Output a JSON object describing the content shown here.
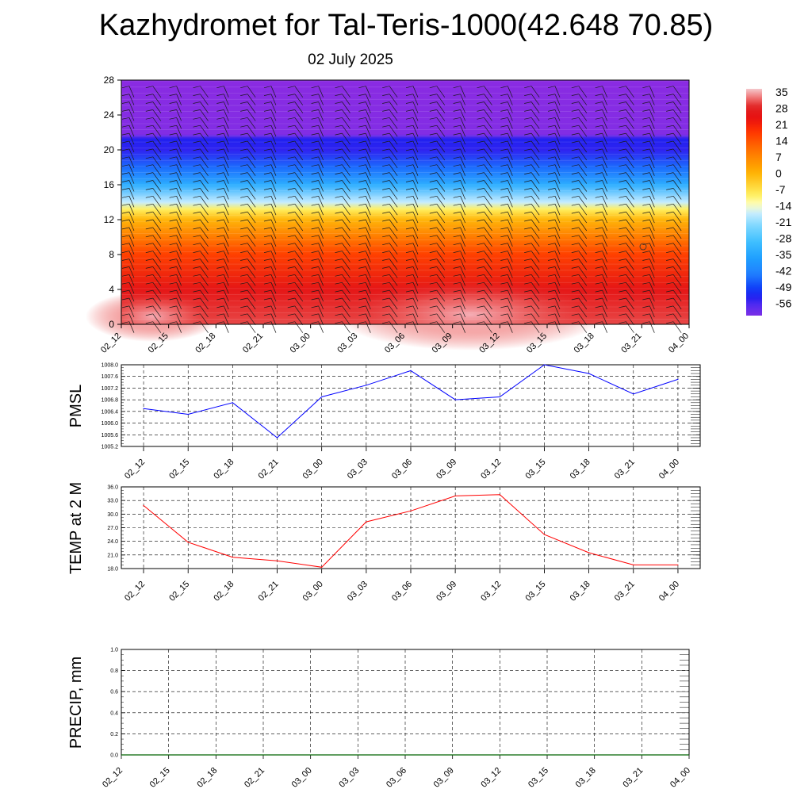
{
  "title": "Kazhydromet for Tal-Teris-1000(42.648 70.85)",
  "subtitle": "02 July 2025",
  "chart_data": [
    {
      "type": "heatmap",
      "x_ticks": [
        "02_12",
        "02_15",
        "02_18",
        "02_21",
        "03_00",
        "03_03",
        "03_06",
        "03_09",
        "03_12",
        "03_15",
        "03_18",
        "03_21",
        "04_00"
      ],
      "y_ticks": [
        0,
        4,
        8,
        12,
        16,
        20,
        24,
        28
      ],
      "ylim": [
        0,
        28
      ],
      "colorbar": {
        "labels": [
          "35",
          "28",
          "21",
          "14",
          "7",
          "0",
          "-7",
          "-14",
          "-21",
          "-28",
          "-35",
          "-42",
          "-49",
          "-56"
        ],
        "range": [
          -60,
          38
        ]
      },
      "temperature_profile": [
        {
          "level": 0,
          "value": 32
        },
        {
          "level": 4,
          "value": 27
        },
        {
          "level": 8,
          "value": 18
        },
        {
          "level": 10,
          "value": 10
        },
        {
          "level": 12,
          "value": 1
        },
        {
          "level": 13.2,
          "value": -8
        },
        {
          "level": 14,
          "value": -16
        },
        {
          "level": 16,
          "value": -32
        },
        {
          "level": 18,
          "value": -44
        },
        {
          "level": 20,
          "value": -53
        },
        {
          "level": 21.2,
          "value": -52
        },
        {
          "level": 21.8,
          "value": -62
        },
        {
          "level": 28,
          "value": -64
        }
      ],
      "wind_barbs": "present"
    },
    {
      "type": "line",
      "ylabel": "PMSL",
      "x_ticks": [
        "02_12",
        "02_15",
        "02_18",
        "02_21",
        "03_00",
        "03_03",
        "03_06",
        "03_09",
        "03_12",
        "03_15",
        "03_18",
        "03_21",
        "04_00"
      ],
      "y_ticks": [
        "1005.2",
        "1005.6",
        "1006.0",
        "1006.4",
        "1006.8",
        "1007.2",
        "1007.6",
        "1008.0"
      ],
      "ylim": [
        1005.2,
        1008.0
      ],
      "grid": true,
      "color": "#0000ff",
      "values": [
        1006.5,
        1006.3,
        1006.7,
        1005.5,
        1006.9,
        1007.3,
        1007.8,
        1006.8,
        1006.9,
        1008.0,
        1007.7,
        1007.0,
        1007.5
      ]
    },
    {
      "type": "line",
      "ylabel": "TEMP at 2 M",
      "x_ticks": [
        "02_12",
        "02_15",
        "02_18",
        "02_21",
        "03_00",
        "03_03",
        "03_06",
        "03_09",
        "03_12",
        "03_15",
        "03_18",
        "03_21",
        "04_00"
      ],
      "y_ticks": [
        "18.0",
        "21.0",
        "24.0",
        "27.0",
        "30.0",
        "33.0",
        "36.0"
      ],
      "ylim": [
        18.0,
        36.0
      ],
      "grid": true,
      "color": "#ff0000",
      "values": [
        31.9,
        23.8,
        20.5,
        19.7,
        18.3,
        28.3,
        30.7,
        34.0,
        34.3,
        25.5,
        21.5,
        18.8,
        18.8
      ]
    },
    {
      "type": "line",
      "ylabel": "PRECIP, mm",
      "x_ticks": [
        "02_12",
        "02_15",
        "02_18",
        "02_21",
        "03_00",
        "03_03",
        "03_06",
        "03_09",
        "03_12",
        "03_15",
        "03_18",
        "03_21",
        "04_00"
      ],
      "y_ticks": [
        "0.0",
        "0.2",
        "0.4",
        "0.6",
        "0.8",
        "1.0"
      ],
      "ylim": [
        0.0,
        1.0
      ],
      "grid": true,
      "color": "#006400",
      "values": [
        0,
        0,
        0,
        0,
        0,
        0,
        0,
        0,
        0,
        0,
        0,
        0,
        0
      ]
    }
  ]
}
